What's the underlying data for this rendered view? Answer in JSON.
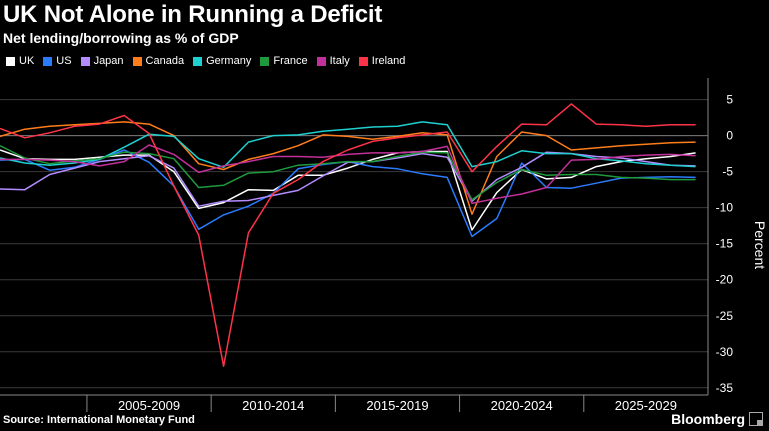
{
  "header": {
    "title": "UK Not Alone in Running a Deficit",
    "subtitle": "Net lending/borrowing as % of GDP"
  },
  "footer": {
    "source": "Source: International Monetary Fund",
    "brand": "Bloomberg"
  },
  "chart_data": {
    "type": "line",
    "ylabel": "Percent",
    "ylim": [
      -36,
      8
    ],
    "yticks": [
      5,
      0,
      -5,
      -10,
      -15,
      -20,
      -25,
      -30,
      -35
    ],
    "xlim": [
      2001,
      2029.5
    ],
    "xtick_labels": [
      {
        "label": "2005-2009",
        "center": 2007
      },
      {
        "label": "2010-2014",
        "center": 2012
      },
      {
        "label": "2015-2019",
        "center": 2017
      },
      {
        "label": "2020-2024",
        "center": 2022
      },
      {
        "label": "2025-2029",
        "center": 2027
      }
    ],
    "xdividers": [
      2004.5,
      2009.5,
      2014.5,
      2019.5,
      2024.5
    ],
    "grid": true,
    "legend_position": "top-left",
    "x": [
      2001,
      2002,
      2003,
      2004,
      2005,
      2006,
      2007,
      2008,
      2009,
      2010,
      2011,
      2012,
      2013,
      2014,
      2015,
      2016,
      2017,
      2018,
      2019,
      2020,
      2021,
      2022,
      2023,
      2024,
      2025,
      2026,
      2027,
      2028,
      2029
    ],
    "series": [
      {
        "name": "UK",
        "color": "#ffffff",
        "values": [
          -2,
          -3.2,
          -3.3,
          -3.3,
          -3,
          -2.7,
          -2.7,
          -5,
          -10.1,
          -9.3,
          -7.5,
          -7.6,
          -5.5,
          -5.5,
          -4.5,
          -3.3,
          -2.4,
          -2.2,
          -2.2,
          -13.1,
          -7.9,
          -4.7,
          -6,
          -5.8,
          -4.3,
          -3.6,
          -3.2,
          -2.9,
          -2.4
        ]
      },
      {
        "name": "US",
        "color": "#2b7bff",
        "values": [
          -3.4,
          -3.3,
          -4.8,
          -4.4,
          -3.3,
          -2,
          -3.7,
          -7,
          -13,
          -11,
          -9.8,
          -8,
          -4.6,
          -4,
          -3.6,
          -4.3,
          -4.6,
          -5.3,
          -5.8,
          -14,
          -11.5,
          -3.8,
          -7.2,
          -7.3,
          -6.6,
          -5.9,
          -5.8,
          -5.7,
          -5.8
        ]
      },
      {
        "name": "Japan",
        "color": "#b38cff",
        "values": [
          -7.4,
          -7.5,
          -5.4,
          -4.5,
          -3.6,
          -3.2,
          -2.8,
          -4.5,
          -9.8,
          -9.1,
          -9,
          -8.3,
          -7.6,
          -5.6,
          -3.7,
          -3.6,
          -3.1,
          -2.5,
          -3,
          -9.1,
          -6.1,
          -4.4,
          -2.3,
          -2.5,
          -2.9,
          -3.1,
          -3.6,
          -4.1,
          -4.2
        ]
      },
      {
        "name": "Canada",
        "color": "#ff7d1a",
        "values": [
          -0.1,
          0.9,
          1.3,
          1.5,
          1.7,
          1.9,
          1.6,
          0,
          -3.9,
          -4.7,
          -3.3,
          -2.5,
          -1.4,
          0.1,
          -0.1,
          -0.5,
          -0.1,
          0.4,
          0.1,
          -10.9,
          -2.9,
          0.5,
          0,
          -2,
          -1.7,
          -1.4,
          -1.2,
          -1,
          -0.9
        ]
      },
      {
        "name": "Germany",
        "color": "#1ed0d0",
        "values": [
          -3.1,
          -3.8,
          -4.1,
          -3.8,
          -3.3,
          -1.6,
          0.2,
          -0.1,
          -3.2,
          -4.4,
          -0.9,
          0,
          0.1,
          0.6,
          0.9,
          1.2,
          1.3,
          1.9,
          1.5,
          -4.3,
          -3.6,
          -2.1,
          -2.5,
          -2.5,
          -3.2,
          -3.5,
          -3.9,
          -4.1,
          -4.3
        ]
      },
      {
        "name": "France",
        "color": "#1e9a3c",
        "values": [
          -1.4,
          -3.1,
          -3.9,
          -3.5,
          -3.2,
          -2.3,
          -2.5,
          -3.2,
          -7.2,
          -6.9,
          -5.2,
          -5,
          -4.1,
          -3.9,
          -3.6,
          -3.6,
          -2.9,
          -2.3,
          -2.4,
          -8.9,
          -6.5,
          -4.7,
          -5.5,
          -5.4,
          -5.4,
          -5.8,
          -5.9,
          -6.1,
          -6.1
        ]
      },
      {
        "name": "Italy",
        "color": "#c2309a",
        "values": [
          -3.3,
          -3.3,
          -3.4,
          -3.6,
          -4.2,
          -3.6,
          -1.3,
          -2.6,
          -5.1,
          -4.2,
          -3.6,
          -2.9,
          -2.9,
          -3,
          -2.6,
          -2.4,
          -2.4,
          -2.2,
          -1.5,
          -9.4,
          -8.7,
          -8.1,
          -7.2,
          -3.4,
          -3.3,
          -2.9,
          -2.7,
          -2.6,
          -2.8
        ]
      },
      {
        "name": "Ireland",
        "color": "#ff3348",
        "values": [
          1,
          -0.3,
          0.4,
          1.3,
          1.6,
          2.8,
          0.3,
          -7,
          -13.8,
          -32,
          -13.5,
          -8,
          -6.1,
          -3.6,
          -2,
          -0.8,
          -0.3,
          0.1,
          0.5,
          -5,
          -1.5,
          1.6,
          1.5,
          4.4,
          1.6,
          1.5,
          1.3,
          1.5,
          1.5
        ]
      }
    ]
  }
}
